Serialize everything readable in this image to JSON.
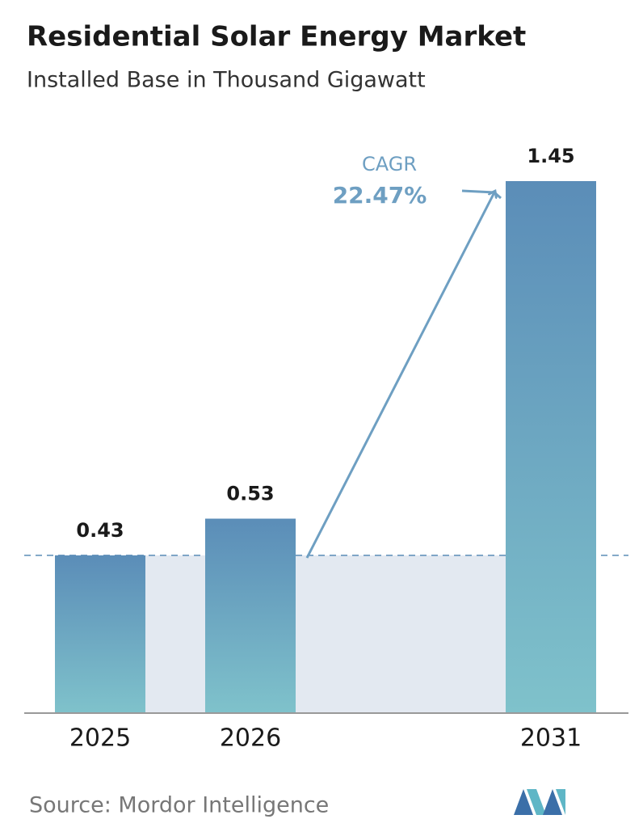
{
  "chart_data": {
    "type": "bar",
    "title": "Residential Solar Energy Market",
    "subtitle": "Installed Base in Thousand Gigawatt",
    "categories": [
      "2025",
      "2026",
      "2031"
    ],
    "values": [
      0.43,
      0.53,
      1.45
    ],
    "cagr_label": "CAGR",
    "cagr_value": "22.47%",
    "source": "Source: Mordor Intelligence"
  }
}
